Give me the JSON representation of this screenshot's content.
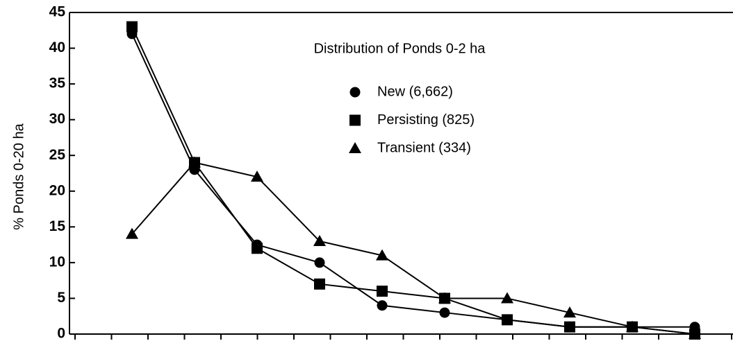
{
  "chart_data": {
    "type": "line",
    "title": "Distribution of Ponds 0-2 ha",
    "y_label": "% Ponds 0-20 ha",
    "categories": [
      null,
      null,
      null,
      null,
      null,
      null,
      null,
      null,
      null,
      null
    ],
    "series": [
      {
        "name": "New (6,662)",
        "color": "#000000",
        "marker": "circle",
        "values": [
          42,
          23,
          12.5,
          10,
          4,
          3,
          2,
          1,
          1,
          1
        ]
      },
      {
        "name": "Persisting (825)",
        "color": "#000000",
        "marker": "square",
        "values": [
          43,
          24,
          12,
          7,
          6,
          5,
          2,
          1,
          1,
          0
        ]
      },
      {
        "name": "Transient (334)",
        "color": "#000000",
        "marker": "triangle",
        "values": [
          14,
          24,
          22,
          13,
          11,
          5,
          5,
          3,
          1,
          0
        ]
      }
    ],
    "ylim": [
      0,
      45
    ],
    "yticks": [
      0,
      5,
      10,
      15,
      20,
      25,
      30,
      35,
      40,
      45
    ]
  }
}
